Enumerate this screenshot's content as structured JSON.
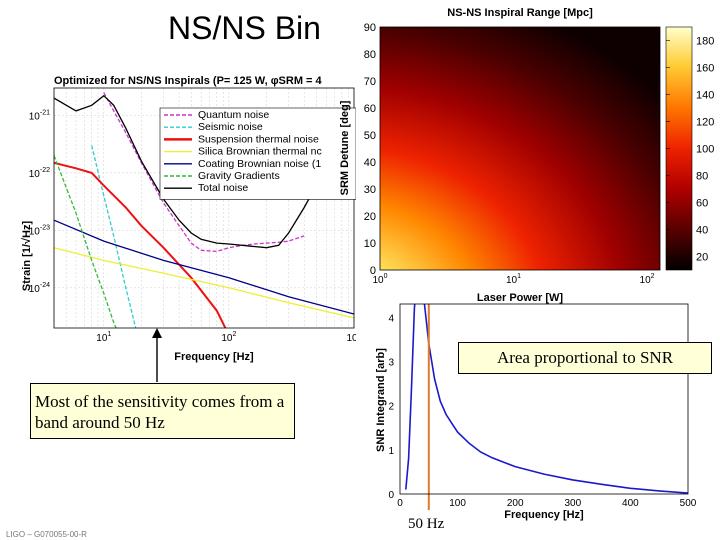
{
  "slide": {
    "title": "NS/NS Bin",
    "footer": "LIGO – G070055-00-R",
    "note_band": "Most of the sensitivity comes from a band around 50 Hz",
    "note_area": "Area proportional to SNR",
    "freq_marker_label": "50 Hz"
  },
  "chart_data": [
    {
      "type": "line",
      "title": "Optimized for NS/NS Inspirals (P= 125 W, φSRM = 4",
      "xlabel": "Frequency [Hz]",
      "ylabel": "Strain [1/√Hz]",
      "xscale": "log",
      "yscale": "log",
      "xlim": [
        4,
        1000
      ],
      "ylim": [
        2e-25,
        3e-21
      ],
      "grid": true,
      "legend_position": "top-right",
      "x_ticks": [
        {
          "v": 10,
          "label": "10"
        },
        {
          "v": 100,
          "label": "10"
        },
        {
          "v": 1000,
          "label": "10"
        }
      ],
      "x_tick_exps": [
        "1",
        "2",
        "3"
      ],
      "y_ticks": [
        {
          "v": 1e-21,
          "label": "10"
        },
        {
          "v": 1e-22,
          "label": "10"
        },
        {
          "v": 1e-23,
          "label": "10"
        },
        {
          "v": 1e-24,
          "label": "10"
        }
      ],
      "y_tick_exps": [
        "-21",
        "-22",
        "-23",
        "-24"
      ],
      "series": [
        {
          "name": "Quantum noise",
          "color": "#cc33cc",
          "dash": "4,2",
          "x": [
            10,
            12,
            15,
            20,
            30,
            40,
            50,
            60,
            80,
            100,
            130,
            160,
            200,
            250,
            300,
            400
          ],
          "y": [
            2.5e-21,
            1.2e-21,
            5e-22,
            1.5e-22,
            3e-23,
            1.2e-23,
            6e-24,
            4.5e-24,
            4.3e-24,
            5e-24,
            5.5e-24,
            5.8e-24,
            6e-24,
            6.2e-24,
            6.5e-24,
            8e-24
          ]
        },
        {
          "name": "Seismic noise",
          "color": "#33cccc",
          "dash": "4,2",
          "x": [
            8,
            10,
            12,
            15,
            18,
            22
          ],
          "y": [
            3e-22,
            4e-23,
            8e-24,
            1e-24,
            2e-25,
            1e-26
          ]
        },
        {
          "name": "Suspension thermal noise",
          "color": "#ee1111",
          "dash": "",
          "x": [
            4,
            6,
            8,
            10,
            15,
            20,
            30,
            50,
            80,
            100
          ],
          "y": [
            1.5e-22,
            1.2e-22,
            1e-22,
            6e-23,
            2.5e-23,
            1.2e-23,
            5e-24,
            1.5e-24,
            4e-25,
            1.5e-25
          ]
        },
        {
          "name": "Silica Brownian thermal nc",
          "color": "#eeee33",
          "dash": "",
          "x": [
            4,
            10,
            30,
            100,
            300,
            1000
          ],
          "y": [
            5e-24,
            3e-24,
            1.8e-24,
            1e-24,
            5.5e-25,
            3e-25
          ]
        },
        {
          "name": "Coating Brownian noise (1",
          "color": "#000088",
          "dash": "",
          "x": [
            4,
            10,
            30,
            100,
            300,
            1000
          ],
          "y": [
            1.5e-23,
            6.5e-24,
            3e-24,
            1.5e-24,
            7e-25,
            3.5e-25
          ]
        },
        {
          "name": "Gravity Gradients",
          "color": "#33bb33",
          "dash": "4,2",
          "x": [
            4,
            6,
            8,
            10,
            12,
            15
          ],
          "y": [
            2e-22,
            2e-23,
            3e-24,
            8e-25,
            2.5e-25,
            8e-26
          ]
        },
        {
          "name": "Total noise",
          "color": "#000000",
          "dash": "",
          "x": [
            4,
            6,
            8,
            10,
            12,
            15,
            20,
            30,
            40,
            50,
            60,
            80,
            100,
            150,
            200,
            250,
            300,
            400,
            500,
            700,
            1000
          ],
          "y": [
            2e-21,
            1.2e-21,
            1.5e-21,
            2.2e-21,
            1.5e-21,
            6e-22,
            1.6e-22,
            3.5e-23,
            1.5e-23,
            9e-24,
            7e-24,
            6e-24,
            5.8e-24,
            5.3e-24,
            5e-24,
            5.5e-24,
            9e-24,
            2.5e-23,
            6e-23,
            1.5e-22,
            3e-22
          ]
        }
      ]
    },
    {
      "type": "heatmap",
      "title": "NS-NS Inspiral Range [Mpc]",
      "xlabel": "Laser Power [W]",
      "ylabel": "SRM Detune [deg]",
      "xscale": "log",
      "xlim": [
        1,
        125
      ],
      "ylim": [
        0,
        90
      ],
      "x_ticks": [
        {
          "v": 1,
          "label": "10"
        },
        {
          "v": 10,
          "label": "10"
        },
        {
          "v": 100,
          "label": "10"
        }
      ],
      "x_tick_exps": [
        "0",
        "1",
        "2"
      ],
      "y_ticks": [
        0,
        10,
        20,
        30,
        40,
        50,
        60,
        70,
        80,
        90
      ],
      "colorbar": {
        "ticks": [
          20,
          40,
          60,
          80,
          100,
          120,
          140,
          160,
          180
        ],
        "min": 10,
        "max": 190,
        "colors": [
          "#000000",
          "#5a0000",
          "#b30000",
          "#ee2200",
          "#ff7700",
          "#ffcc33",
          "#ffffcc"
        ]
      }
    },
    {
      "type": "line",
      "xlabel": "Frequency [Hz]",
      "ylabel": "SNR Integrand [arb]",
      "xlim": [
        0,
        500
      ],
      "ylim": [
        0,
        4.3
      ],
      "x_ticks": [
        0,
        100,
        200,
        300,
        400,
        500
      ],
      "y_ticks": [
        0,
        1,
        2,
        3,
        4
      ],
      "marker_x": 50,
      "series": [
        {
          "color": "#1a1acc",
          "x": [
            10,
            15,
            20,
            25,
            30,
            35,
            40,
            50,
            60,
            70,
            80,
            90,
            100,
            120,
            140,
            160,
            180,
            200,
            250,
            300,
            350,
            400,
            450,
            500
          ],
          "y": [
            0.1,
            0.8,
            2.4,
            4.2,
            5,
            5,
            4.6,
            3.4,
            2.6,
            2.1,
            1.8,
            1.6,
            1.4,
            1.15,
            0.95,
            0.82,
            0.72,
            0.62,
            0.45,
            0.32,
            0.22,
            0.13,
            0.07,
            0.02
          ]
        }
      ]
    }
  ]
}
